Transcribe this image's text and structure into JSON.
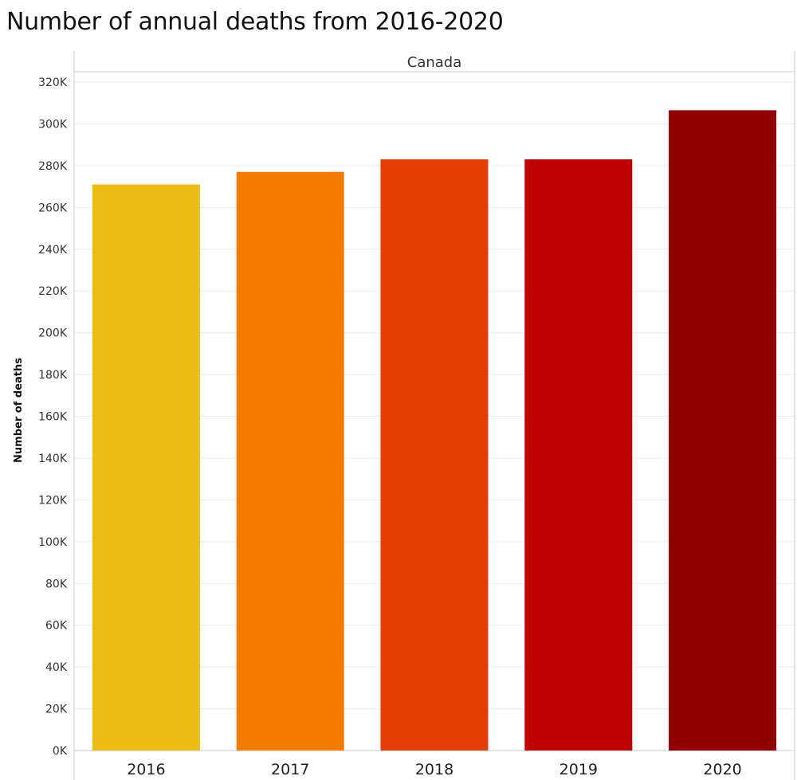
{
  "chart_data": {
    "type": "bar",
    "title": "Number of annual deaths from 2016-2020",
    "panel_label": "Canada",
    "xlabel": "",
    "ylabel": "Number of deaths",
    "categories": [
      "2016",
      "2017",
      "2018",
      "2019",
      "2020"
    ],
    "values": [
      271000,
      277000,
      283000,
      283000,
      306500
    ],
    "bar_colors": [
      "#ECBE15",
      "#F57A00",
      "#E33D00",
      "#C00000",
      "#910000"
    ],
    "ylim": [
      0,
      320000
    ],
    "yticks": [
      0,
      20000,
      40000,
      60000,
      80000,
      100000,
      120000,
      140000,
      160000,
      180000,
      200000,
      220000,
      240000,
      260000,
      280000,
      300000,
      320000
    ],
    "ytick_labels": [
      "0K",
      "20K",
      "40K",
      "60K",
      "80K",
      "100K",
      "120K",
      "140K",
      "160K",
      "180K",
      "200K",
      "220K",
      "240K",
      "260K",
      "280K",
      "300K",
      "320K"
    ],
    "grid": true,
    "legend": false
  }
}
